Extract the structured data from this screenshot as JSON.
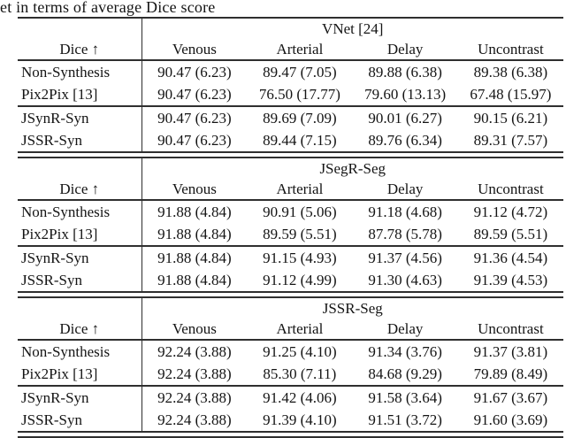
{
  "caption": "et in terms of average Dice score",
  "colors": {
    "background": "#ffffff",
    "text": "#141414",
    "rule": "#2f2f2f"
  },
  "table": {
    "dice_label": "Dice ↑",
    "col_headers": [
      "Venous",
      "Arterial",
      "Delay",
      "Uncontrast"
    ],
    "sections": [
      {
        "title": "VNet [24]",
        "rows": [
          {
            "label": "Non-Synthesis",
            "values": [
              "90.47 (6.23)",
              "89.47 (7.05)",
              "89.88 (6.38)",
              "89.38 (6.38)"
            ]
          },
          {
            "label": "Pix2Pix [13]",
            "values": [
              "90.47 (6.23)",
              "76.50 (17.77)",
              "79.60 (13.13)",
              "67.48 (15.97)"
            ]
          },
          {
            "label": "JSynR-Syn",
            "values": [
              "90.47 (6.23)",
              "89.69 (7.09)",
              "90.01 (6.27)",
              "90.15 (6.21)"
            ]
          },
          {
            "label": "JSSR-Syn",
            "values": [
              "90.47 (6.23)",
              "89.44 (7.15)",
              "89.76 (6.34)",
              "89.31 (7.57)"
            ]
          }
        ]
      },
      {
        "title": "JSegR-Seg",
        "rows": [
          {
            "label": "Non-Synthesis",
            "values": [
              "91.88 (4.84)",
              "90.91 (5.06)",
              "91.18 (4.68)",
              "91.12 (4.72)"
            ]
          },
          {
            "label": "Pix2Pix [13]",
            "values": [
              "91.88 (4.84)",
              "89.59 (5.51)",
              "87.78 (5.78)",
              "89.59 (5.51)"
            ]
          },
          {
            "label": "JSynR-Syn",
            "values": [
              "91.88 (4.84)",
              "91.15 (4.93)",
              "91.37 (4.56)",
              "91.36 (4.54)"
            ]
          },
          {
            "label": "JSSR-Syn",
            "values": [
              "91.88 (4.84)",
              "91.12 (4.99)",
              "91.30 (4.63)",
              "91.39 (4.53)"
            ]
          }
        ]
      },
      {
        "title": "JSSR-Seg",
        "rows": [
          {
            "label": "Non-Synthesis",
            "values": [
              "92.24 (3.88)",
              "91.25 (4.10)",
              "91.34 (3.76)",
              "91.37 (3.81)"
            ]
          },
          {
            "label": "Pix2Pix [13]",
            "values": [
              "92.24 (3.88)",
              "85.30 (7.11)",
              "84.68 (9.29)",
              "79.89 (8.49)"
            ]
          },
          {
            "label": "JSynR-Syn",
            "values": [
              "92.24 (3.88)",
              "91.42 (4.06)",
              "91.58 (3.64)",
              "91.67 (3.67)"
            ]
          },
          {
            "label": "JSSR-Syn",
            "values": [
              "92.24 (3.88)",
              "91.39 (4.10)",
              "91.51 (3.72)",
              "91.60 (3.69)"
            ]
          }
        ]
      }
    ]
  }
}
